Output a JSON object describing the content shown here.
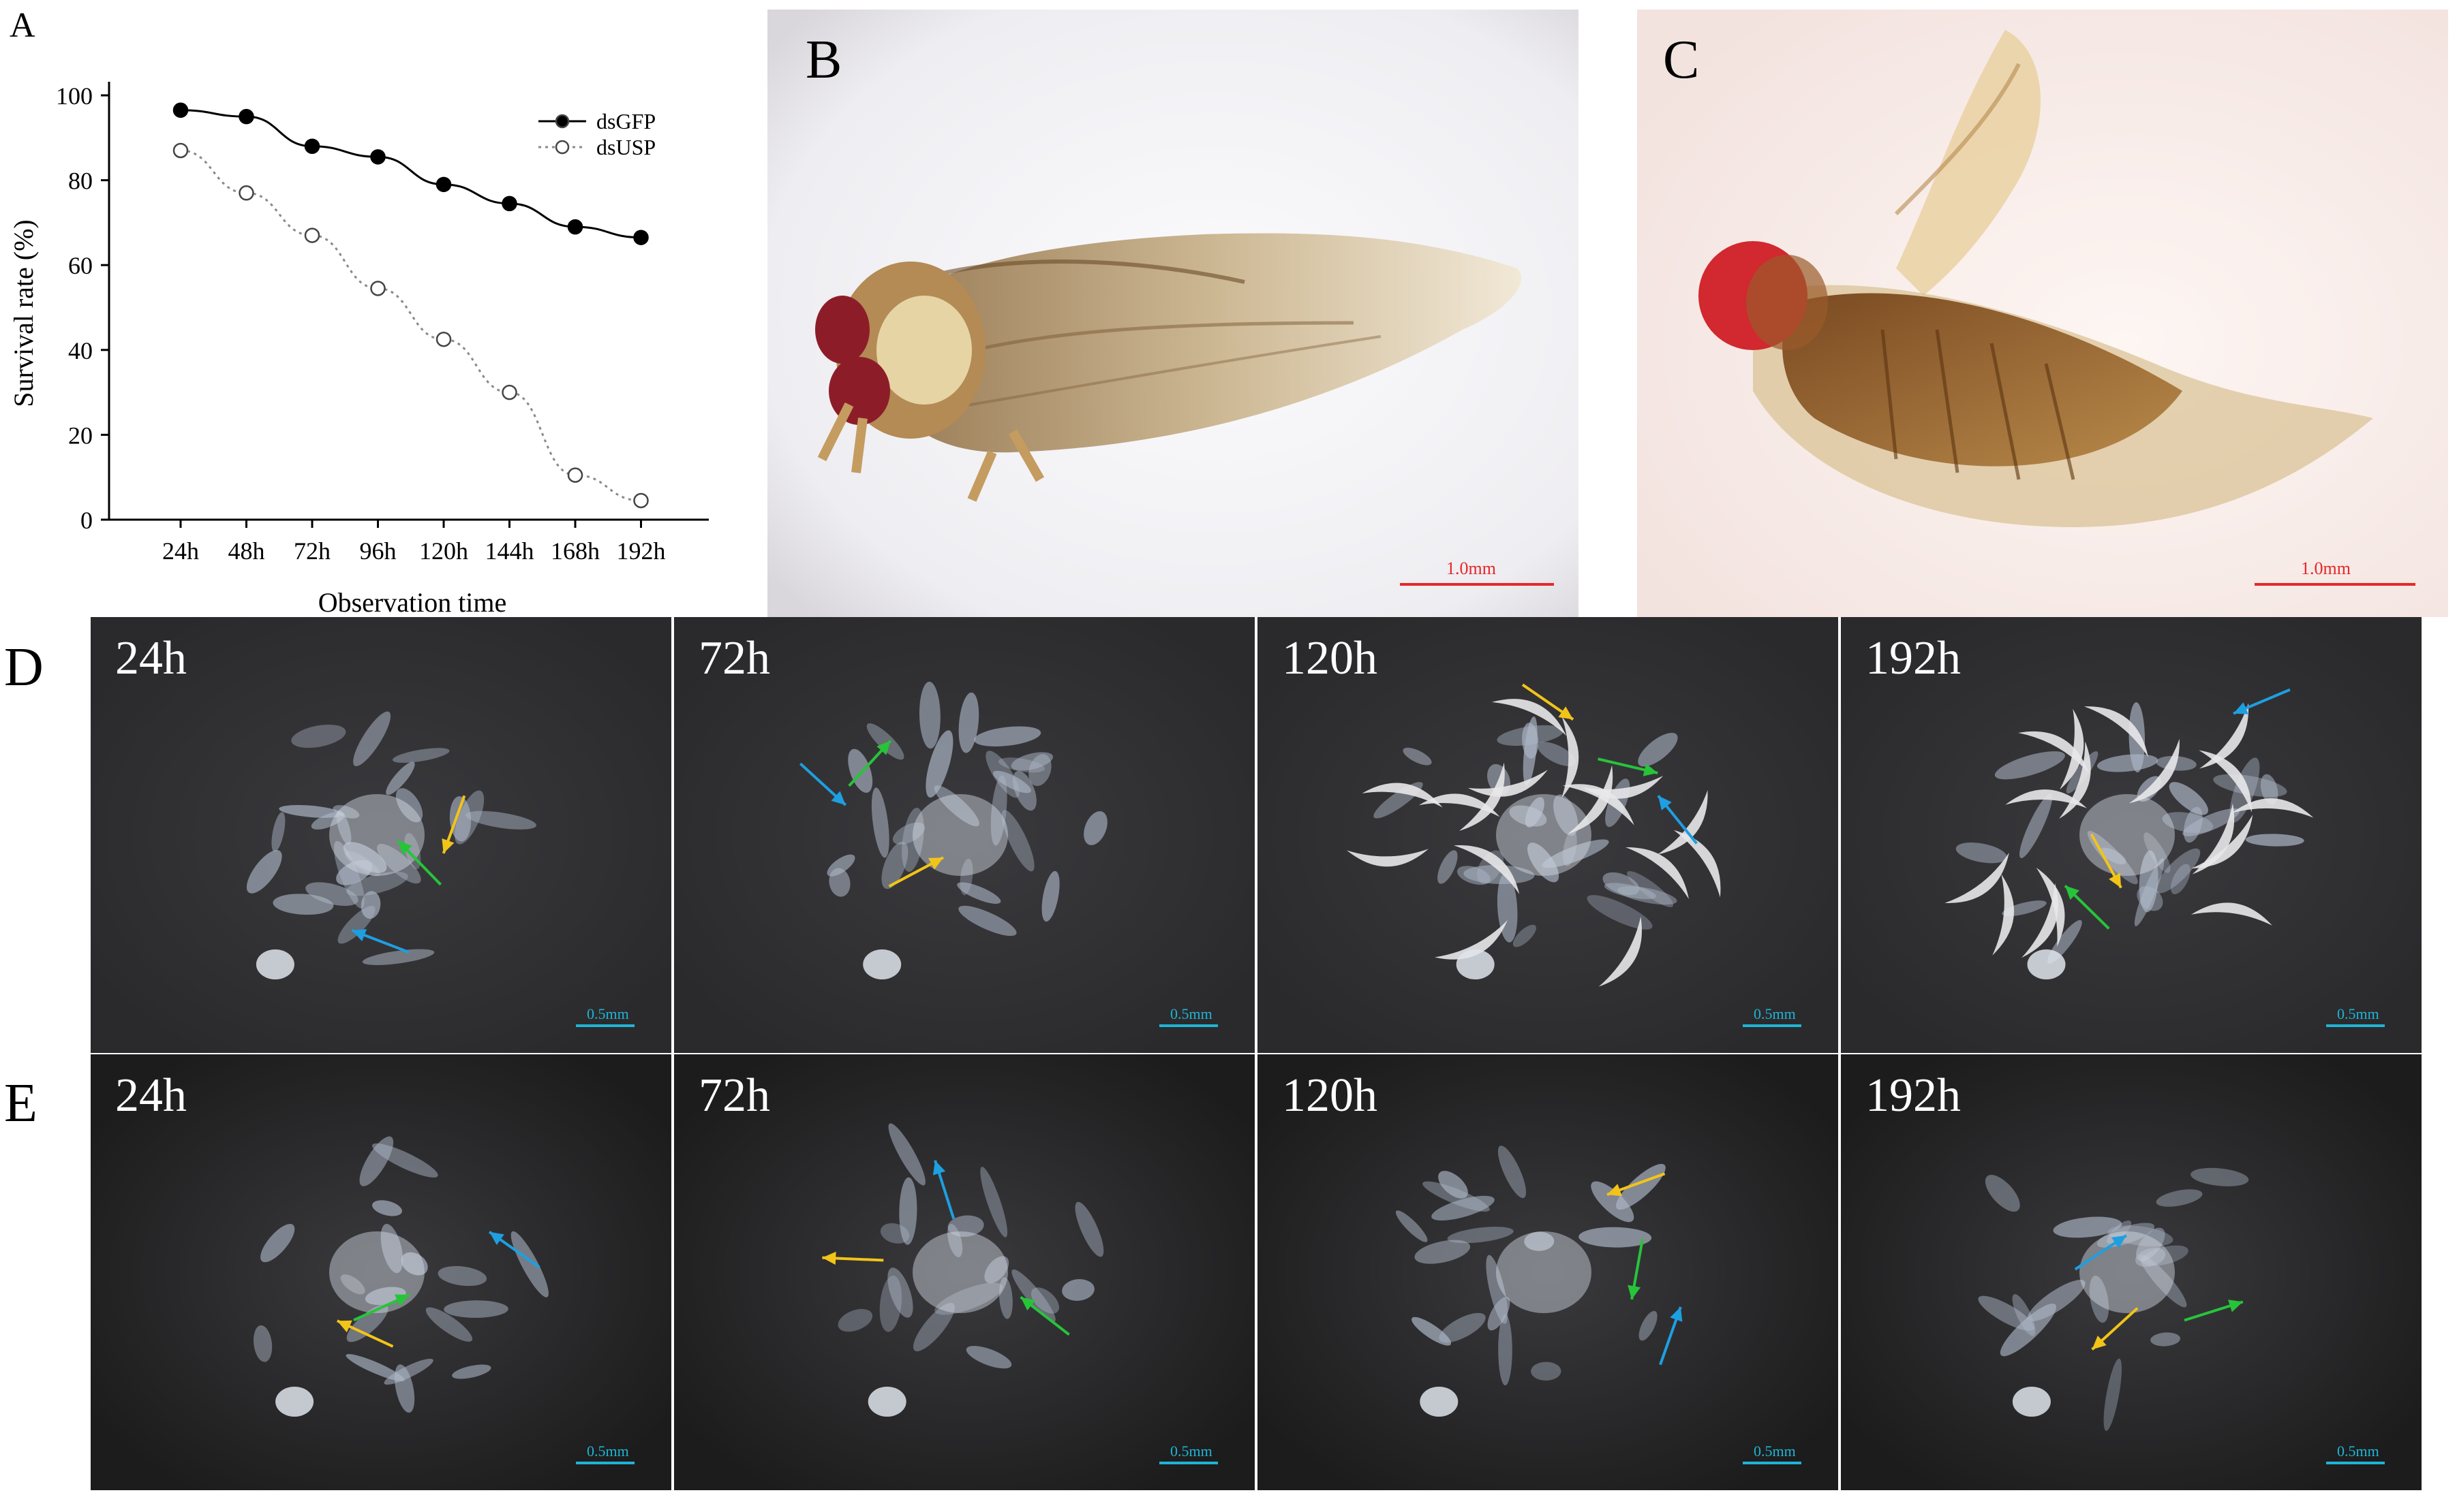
{
  "panels": {
    "a": "A",
    "b": "B",
    "c": "C",
    "d": "D",
    "e": "E"
  },
  "chart_data": {
    "type": "line",
    "title": "",
    "xlabel": "Observation time",
    "ylabel": "Survival rate (%)",
    "categories": [
      "24h",
      "48h",
      "72h",
      "96h",
      "120h",
      "144h",
      "168h",
      "192h"
    ],
    "yticks": [
      "0",
      "20",
      "40",
      "60",
      "80",
      "100"
    ],
    "ylim": [
      0,
      100
    ],
    "grid": false,
    "legend": "top-right",
    "series": [
      {
        "name": "dsGFP",
        "values": [
          96.5,
          95,
          88,
          85.5,
          79,
          74.5,
          69,
          66.5
        ],
        "marker": "filled-circle",
        "line": "solid",
        "color": "#000000"
      },
      {
        "name": "dsUSP",
        "values": [
          87,
          77,
          67,
          54.5,
          42.5,
          30,
          10.5,
          4.5
        ],
        "marker": "open-circle",
        "line": "dotted",
        "color": "#8a8a8a"
      }
    ]
  },
  "photos": {
    "b_scale": "1.0mm",
    "c_scale": "1.0mm",
    "scale_small": "0.5mm"
  },
  "row_d": [
    "24h",
    "72h",
    "120h",
    "192h"
  ],
  "row_e": [
    "24h",
    "72h",
    "120h",
    "192h"
  ]
}
